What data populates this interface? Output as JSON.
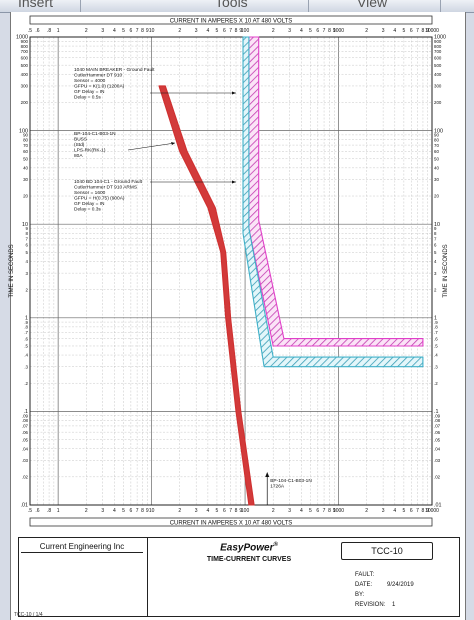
{
  "ribbon": {
    "tabs": [
      "Insert",
      "Tools",
      "View"
    ]
  },
  "chart_data": {
    "type": "line",
    "title": "CURRENT IN AMPERES X 10 AT 480 VOLTS",
    "xlabel": "CURRENT IN AMPERES X 10 AT 480 VOLTS",
    "ylabel": "TIME IN SECONDS",
    "x_scale": "log",
    "y_scale": "log",
    "xlim": [
      0.5,
      10000
    ],
    "ylim": [
      0.01,
      1000
    ],
    "grid": true,
    "x_tick_labels": [
      ".5",
      ".6",
      ".8",
      "1",
      "2",
      "3",
      "4",
      "5",
      "6",
      "7",
      "8",
      "9",
      "10",
      "2",
      "3",
      "4",
      "5",
      "6",
      "7",
      "8",
      "9",
      "100",
      "2",
      "3",
      "4",
      "5",
      "6",
      "7",
      "8",
      "9",
      "1000",
      "2",
      "3",
      "4",
      "5",
      "6",
      "7",
      "8",
      "9",
      "10000"
    ],
    "y_tick_labels_major": [
      "1000",
      "900",
      "800",
      "700",
      "600",
      "500",
      "400",
      "300",
      "200",
      "100",
      "90",
      "80",
      "70",
      "60",
      "50",
      "40",
      "30",
      "20",
      "10",
      "9",
      "8",
      "7",
      "6",
      "5",
      "4",
      "3",
      "2",
      "1",
      ".9",
      ".8",
      ".7",
      ".6",
      ".5",
      ".4",
      ".3",
      ".2",
      ".1",
      ".09",
      ".08",
      ".07",
      ".06",
      ".05",
      ".04",
      ".03",
      ".02",
      ".01"
    ],
    "series": [
      {
        "name": "1040 MAIN BREAKER - Ground Fault",
        "color": "#e040c8",
        "band": true,
        "label": [
          "1040 MAIN BREAKER - Ground Fault",
          "CutlerHammer DT 910",
          "Sensor = 4000",
          "GFPU = K(1.0) (1200A)",
          "GF Delay = IN",
          "Delay = 0.5s"
        ],
        "lower": [
          [
            110,
            1000
          ],
          [
            110,
            9
          ],
          [
            200,
            0.5
          ],
          [
            8000,
            0.5
          ]
        ],
        "upper": [
          [
            140,
            1000
          ],
          [
            140,
            11
          ],
          [
            260,
            0.6
          ],
          [
            8000,
            0.6
          ]
        ]
      },
      {
        "name": "1040 BD 104-C1 - Ground Fault",
        "color": "#3fb0c8",
        "band": true,
        "label": [
          "1040 BD 104-C1 - Ground Fault",
          "CutlerHammer DT 910 ARMS",
          "Sensor = 1600",
          "GFPU = H(0.75) (900A)",
          "GF Delay = IN",
          "Delay = 0.3s"
        ],
        "lower": [
          [
            95,
            1000
          ],
          [
            95,
            8
          ],
          [
            160,
            0.3
          ],
          [
            8000,
            0.3
          ]
        ],
        "upper": [
          [
            110,
            1000
          ],
          [
            110,
            9
          ],
          [
            200,
            0.38
          ],
          [
            8000,
            0.38
          ]
        ]
      },
      {
        "name": "BP-104-C1-B03-1N",
        "color": "#d03030",
        "band": true,
        "label": [
          "BP-104-C1-B03-1N",
          "BUSS",
          "(Std)",
          "LPS-RK(RK-1)",
          "80A"
        ],
        "lower": [
          [
            12,
            300
          ],
          [
            20,
            60
          ],
          [
            40,
            15
          ],
          [
            55,
            5
          ],
          [
            62,
            1
          ],
          [
            80,
            0.1
          ],
          [
            110,
            0.01
          ]
        ],
        "upper": [
          [
            14,
            300
          ],
          [
            24,
            60
          ],
          [
            48,
            15
          ],
          [
            62,
            5
          ],
          [
            70,
            1
          ],
          [
            90,
            0.1
          ],
          [
            125,
            0.01
          ]
        ]
      }
    ],
    "annotations": [
      {
        "text": "BP-104-C1-B03-1N",
        "text2": "1726A",
        "x": 172.6,
        "y": 0.016
      }
    ]
  },
  "title_block": {
    "company": "Current Engineering Inc",
    "brand": "EasyPower",
    "brand_mark": "®",
    "subtitle": "TIME-CURRENT CURVES",
    "drawing_id": "TCC-10",
    "fault_label": "FAULT:",
    "date_label": "DATE:",
    "date_value": "9/24/2019",
    "by_label": "BY:",
    "revision_label": "REVISION:",
    "revision_value": "1"
  },
  "footer": {
    "text": "TCC-10 / 1/4"
  }
}
